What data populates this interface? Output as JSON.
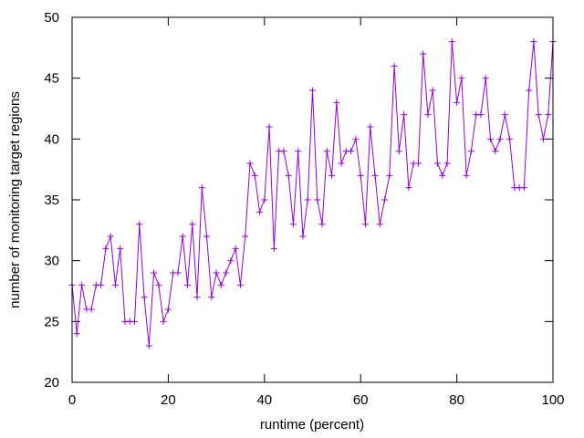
{
  "chart_data": {
    "type": "line",
    "title": "",
    "xlabel": "runtime (percent)",
    "ylabel": "number of monitoring target regions",
    "xlim": [
      0,
      100
    ],
    "ylim": [
      20,
      50
    ],
    "xticks": [
      0,
      20,
      40,
      60,
      80,
      100
    ],
    "yticks": [
      20,
      25,
      30,
      35,
      40,
      45,
      50
    ],
    "grid": false,
    "legend": "none",
    "marker": "plus",
    "colors": {
      "series": "#9400d3",
      "axes": "#000000",
      "background": "#ffffff"
    },
    "series": [
      {
        "x": [
          0,
          1,
          2,
          3,
          4,
          5,
          6,
          7,
          8,
          9,
          10,
          11,
          12,
          13,
          14,
          15,
          16,
          17,
          18,
          19,
          20,
          21,
          22,
          23,
          24,
          25,
          26,
          27,
          28,
          29,
          30,
          31,
          32,
          33,
          34,
          35,
          36,
          37,
          38,
          39,
          40,
          41,
          42,
          43,
          44,
          45,
          46,
          47,
          48,
          49,
          50,
          51,
          52,
          53,
          54,
          55,
          56,
          57,
          58,
          59,
          60,
          61,
          62,
          63,
          64,
          65,
          66,
          67,
          68,
          69,
          70,
          71,
          72,
          73,
          74,
          75,
          76,
          77,
          78,
          79,
          80,
          81,
          82,
          83,
          84,
          85,
          86,
          87,
          88,
          89,
          90,
          91,
          92,
          93,
          94,
          95,
          96,
          97,
          98,
          99,
          100
        ],
        "values": [
          28,
          24,
          28,
          26,
          26,
          28,
          28,
          31,
          32,
          28,
          31,
          25,
          25,
          25,
          33,
          27,
          23,
          29,
          28,
          25,
          26,
          29,
          29,
          32,
          28,
          33,
          27,
          36,
          32,
          27,
          29,
          28,
          29,
          30,
          31,
          28,
          32,
          38,
          37,
          34,
          35,
          41,
          31,
          39,
          39,
          37,
          33,
          39,
          32,
          35,
          44,
          35,
          33,
          39,
          37,
          43,
          38,
          39,
          39,
          40,
          37,
          33,
          41,
          37,
          33,
          35,
          37,
          46,
          39,
          42,
          36,
          38,
          38,
          47,
          42,
          44,
          38,
          37,
          38,
          48,
          43,
          45,
          37,
          39,
          42,
          42,
          45,
          40,
          39,
          40,
          42,
          40,
          36,
          36,
          36,
          44,
          48,
          42,
          40,
          42,
          48
        ]
      }
    ]
  }
}
